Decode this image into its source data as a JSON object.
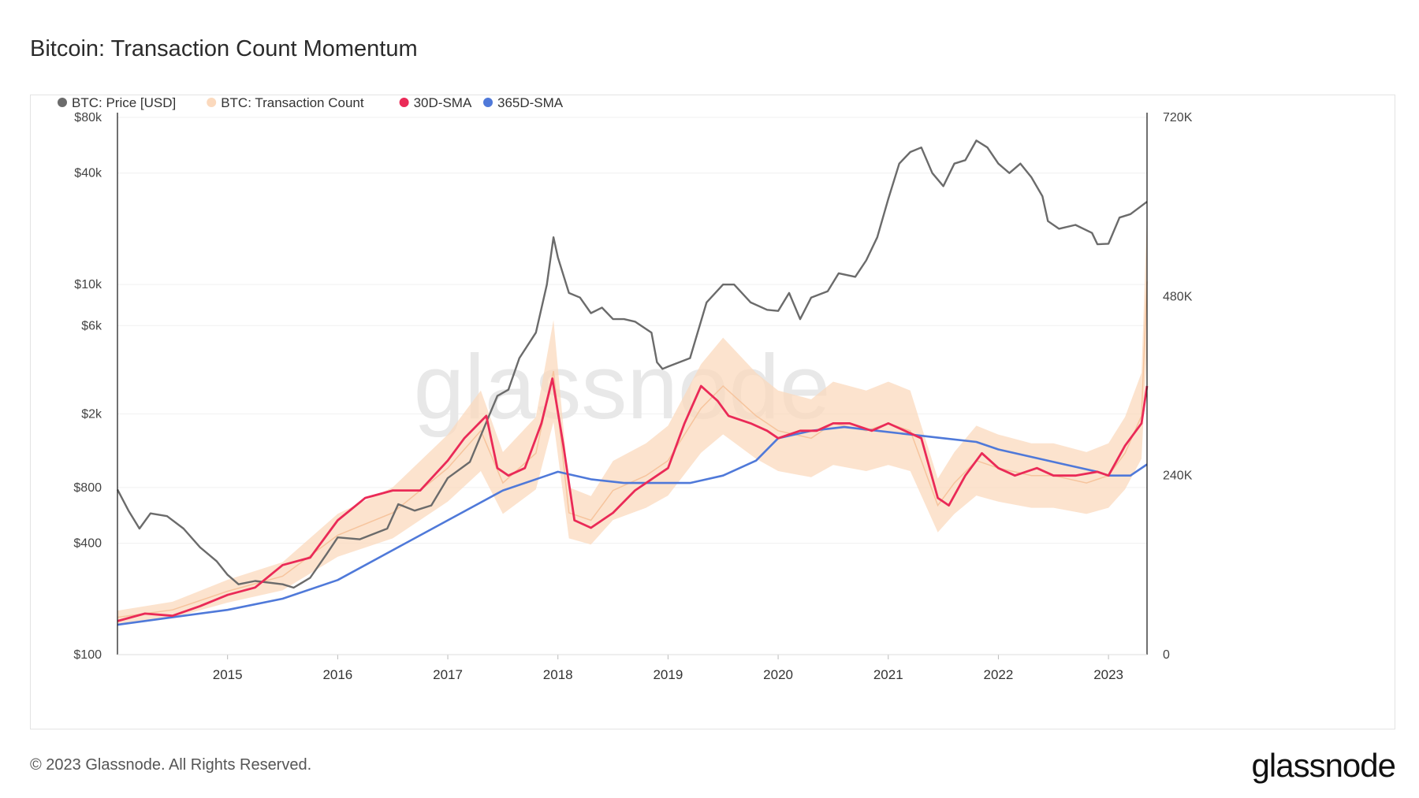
{
  "title": "Bitcoin: Transaction Count Momentum",
  "footer": "© 2023 Glassnode. All Rights Reserved.",
  "brand": "glassnode",
  "watermark": "glassnode",
  "colors": {
    "price": "#6b6b6b",
    "tx_count": "#fbd9bd",
    "sma30": "#ea2a57",
    "sma365": "#4f79d9"
  },
  "chart_data": {
    "type": "line",
    "title": "Bitcoin: Transaction Count Momentum",
    "legend_position": "top-left",
    "grid": true,
    "x_range": [
      2014.0,
      2023.35
    ],
    "x_ticks": [
      "2015",
      "2016",
      "2017",
      "2018",
      "2019",
      "2020",
      "2021",
      "2022",
      "2023"
    ],
    "y_left": {
      "scale": "log",
      "range": [
        100,
        80000
      ],
      "ticks": [
        "$100",
        "$400",
        "$800",
        "$2k",
        "$6k",
        "$10k",
        "$40k",
        "$80k"
      ]
    },
    "y_right": {
      "scale": "linear",
      "range": [
        0,
        720000
      ],
      "ticks": [
        "0",
        "240K",
        "480K",
        "720K"
      ]
    },
    "series": [
      {
        "name": "BTC: Price [USD]",
        "axis": "left",
        "key": "price",
        "x": [
          2014.0,
          2014.1,
          2014.2,
          2014.3,
          2014.45,
          2014.6,
          2014.75,
          2014.9,
          2015.0,
          2015.1,
          2015.25,
          2015.5,
          2015.6,
          2015.75,
          2015.9,
          2016.0,
          2016.2,
          2016.45,
          2016.55,
          2016.7,
          2016.85,
          2017.0,
          2017.2,
          2017.35,
          2017.45,
          2017.55,
          2017.65,
          2017.8,
          2017.9,
          2017.96,
          2018.0,
          2018.1,
          2018.2,
          2018.3,
          2018.4,
          2018.5,
          2018.6,
          2018.7,
          2018.85,
          2018.9,
          2018.95,
          2019.0,
          2019.2,
          2019.35,
          2019.5,
          2019.6,
          2019.75,
          2019.9,
          2020.0,
          2020.1,
          2020.2,
          2020.3,
          2020.45,
          2020.55,
          2020.7,
          2020.8,
          2020.9,
          2021.0,
          2021.1,
          2021.2,
          2021.3,
          2021.4,
          2021.5,
          2021.6,
          2021.7,
          2021.8,
          2021.9,
          2022.0,
          2022.1,
          2022.2,
          2022.3,
          2022.4,
          2022.45,
          2022.55,
          2022.7,
          2022.85,
          2022.9,
          2023.0,
          2023.1,
          2023.2,
          2023.35
        ],
        "values": [
          780,
          600,
          480,
          580,
          560,
          480,
          380,
          320,
          270,
          240,
          250,
          240,
          230,
          260,
          350,
          430,
          420,
          480,
          650,
          600,
          640,
          900,
          1100,
          1800,
          2500,
          2700,
          4000,
          5500,
          10000,
          18000,
          14000,
          9000,
          8500,
          7000,
          7500,
          6500,
          6500,
          6300,
          5500,
          3800,
          3500,
          3600,
          4000,
          8000,
          10000,
          10000,
          8000,
          7300,
          7200,
          9000,
          6500,
          8500,
          9200,
          11500,
          11000,
          13500,
          18000,
          29000,
          45000,
          52000,
          55000,
          40000,
          34000,
          45000,
          47000,
          60000,
          55000,
          45000,
          40000,
          45000,
          38000,
          30000,
          22000,
          20000,
          21000,
          19000,
          16500,
          16600,
          23000,
          24000,
          28000
        ]
      },
      {
        "name": "BTC: Transaction Count",
        "axis": "right",
        "key": "tx_count",
        "x": [
          2014.0,
          2014.5,
          2015.0,
          2015.5,
          2016.0,
          2016.5,
          2017.0,
          2017.3,
          2017.5,
          2017.8,
          2017.96,
          2018.1,
          2018.3,
          2018.5,
          2018.8,
          2019.0,
          2019.3,
          2019.5,
          2019.8,
          2020.0,
          2020.3,
          2020.5,
          2020.8,
          2021.0,
          2021.2,
          2021.45,
          2021.6,
          2021.8,
          2022.0,
          2022.3,
          2022.5,
          2022.8,
          2023.0,
          2023.15,
          2023.3,
          2023.35
        ],
        "values": [
          50000,
          60000,
          85000,
          105000,
          160000,
          190000,
          250000,
          300000,
          230000,
          270000,
          380000,
          190000,
          180000,
          220000,
          240000,
          260000,
          330000,
          360000,
          320000,
          300000,
          290000,
          310000,
          300000,
          310000,
          300000,
          200000,
          230000,
          260000,
          250000,
          240000,
          240000,
          230000,
          240000,
          270000,
          320000,
          500000
        ]
      },
      {
        "name": "30D-SMA",
        "axis": "right",
        "key": "sma30",
        "x": [
          2014.0,
          2014.25,
          2014.5,
          2014.75,
          2015.0,
          2015.25,
          2015.5,
          2015.75,
          2016.0,
          2016.25,
          2016.5,
          2016.75,
          2017.0,
          2017.15,
          2017.35,
          2017.45,
          2017.55,
          2017.7,
          2017.85,
          2017.95,
          2018.05,
          2018.15,
          2018.3,
          2018.5,
          2018.7,
          2018.9,
          2019.0,
          2019.15,
          2019.3,
          2019.45,
          2019.55,
          2019.75,
          2019.9,
          2020.0,
          2020.2,
          2020.35,
          2020.5,
          2020.65,
          2020.85,
          2021.0,
          2021.15,
          2021.3,
          2021.45,
          2021.55,
          2021.7,
          2021.85,
          2022.0,
          2022.15,
          2022.35,
          2022.5,
          2022.7,
          2022.9,
          2023.0,
          2023.15,
          2023.3,
          2023.35
        ],
        "values": [
          45000,
          55000,
          52000,
          65000,
          80000,
          90000,
          120000,
          130000,
          180000,
          210000,
          220000,
          220000,
          260000,
          290000,
          320000,
          250000,
          240000,
          250000,
          310000,
          370000,
          280000,
          180000,
          170000,
          190000,
          220000,
          240000,
          250000,
          310000,
          360000,
          340000,
          320000,
          310000,
          300000,
          290000,
          300000,
          300000,
          310000,
          310000,
          300000,
          310000,
          300000,
          290000,
          210000,
          200000,
          240000,
          270000,
          250000,
          240000,
          250000,
          240000,
          240000,
          245000,
          240000,
          280000,
          310000,
          360000
        ]
      },
      {
        "name": "365D-SMA",
        "axis": "right",
        "key": "sma365",
        "x": [
          2014.0,
          2014.5,
          2015.0,
          2015.5,
          2016.0,
          2016.5,
          2017.0,
          2017.5,
          2017.9,
          2018.0,
          2018.3,
          2018.6,
          2018.9,
          2019.2,
          2019.5,
          2019.8,
          2020.0,
          2020.3,
          2020.6,
          2020.9,
          2021.2,
          2021.5,
          2021.8,
          2022.0,
          2022.3,
          2022.6,
          2022.9,
          2023.0,
          2023.2,
          2023.35
        ],
        "values": [
          40000,
          50000,
          60000,
          75000,
          100000,
          140000,
          180000,
          220000,
          240000,
          245000,
          235000,
          230000,
          230000,
          230000,
          240000,
          260000,
          290000,
          300000,
          305000,
          300000,
          295000,
          290000,
          285000,
          275000,
          265000,
          255000,
          245000,
          240000,
          240000,
          255000
        ]
      }
    ]
  }
}
